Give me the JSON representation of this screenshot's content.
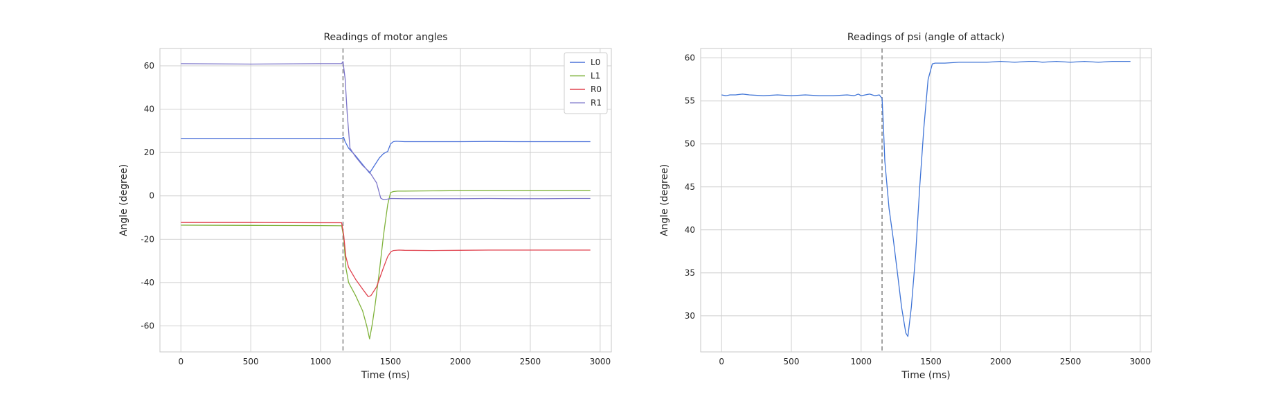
{
  "chart_data": [
    {
      "type": "line",
      "title": "Readings of motor angles",
      "xlabel": "Time (ms)",
      "ylabel": "Angle (degree)",
      "xlim": [
        -150,
        3080
      ],
      "ylim": [
        -72,
        68
      ],
      "xticks": [
        0,
        500,
        1000,
        1500,
        2000,
        2500,
        3000
      ],
      "yticks": [
        -60,
        -40,
        -20,
        0,
        20,
        40,
        60
      ],
      "grid": true,
      "legend": "top-right",
      "vline_x": 1160,
      "series": [
        {
          "name": "L0",
          "color": "#4c72d9",
          "x": [
            0,
            500,
            1000,
            1150,
            1165,
            1175,
            1200,
            1250,
            1300,
            1350,
            1380,
            1420,
            1450,
            1480,
            1500,
            1520,
            1540,
            1600,
            1800,
            2000,
            2200,
            2400,
            2600,
            2800,
            2930
          ],
          "y": [
            26.5,
            26.5,
            26.5,
            26.5,
            27,
            25,
            22,
            18.5,
            14.5,
            10.5,
            13.5,
            17.5,
            19.5,
            20.5,
            24,
            25,
            25.2,
            25,
            25,
            25,
            25.1,
            25,
            25,
            25,
            25
          ]
        },
        {
          "name": "L1",
          "color": "#7fb23a",
          "x": [
            0,
            500,
            1000,
            1150,
            1165,
            1180,
            1200,
            1250,
            1300,
            1330,
            1350,
            1370,
            1390,
            1420,
            1450,
            1480,
            1500,
            1520,
            1550,
            1600,
            1800,
            2000,
            2200,
            2400,
            2600,
            2800,
            2930
          ],
          "y": [
            -13.5,
            -13.6,
            -13.7,
            -13.8,
            -19,
            -33,
            -40,
            -46,
            -53,
            -60,
            -66,
            -59,
            -50,
            -35,
            -18,
            -4,
            1.5,
            2,
            2.2,
            2.2,
            2.3,
            2.4,
            2.4,
            2.4,
            2.4,
            2.4,
            2.4
          ],
          "hide_in_legend_order": false
        },
        {
          "name": "R0",
          "color": "#e0424e",
          "x": [
            0,
            500,
            1000,
            1150,
            1165,
            1180,
            1200,
            1250,
            1300,
            1340,
            1360,
            1400,
            1450,
            1480,
            1500,
            1520,
            1560,
            1600,
            1800,
            2000,
            2200,
            2400,
            2600,
            2800,
            2930
          ],
          "y": [
            -12.3,
            -12.3,
            -12.4,
            -12.4,
            -18,
            -28,
            -33,
            -38.5,
            -43,
            -46.5,
            -46,
            -42,
            -33,
            -28,
            -26,
            -25.2,
            -25,
            -25.1,
            -25.2,
            -25.1,
            -25,
            -25,
            -25,
            -25,
            -25
          ]
        },
        {
          "name": "R1",
          "color": "#7b74c9",
          "x": [
            0,
            500,
            1000,
            1150,
            1160,
            1175,
            1190,
            1210,
            1250,
            1300,
            1350,
            1380,
            1400,
            1430,
            1450,
            1480,
            1500,
            1600,
            1800,
            2000,
            2200,
            2400,
            2600,
            2800,
            2930
          ],
          "y": [
            61,
            60.8,
            61,
            61,
            62,
            54,
            38,
            22,
            18,
            14,
            11,
            8,
            6,
            -1,
            -1.8,
            -1.5,
            -1.2,
            -1.3,
            -1.3,
            -1.3,
            -1.2,
            -1.3,
            -1.3,
            -1.2,
            -1.2
          ]
        }
      ]
    },
    {
      "type": "line",
      "title": "Readings of psi (angle of attack)",
      "xlabel": "Time (ms)",
      "ylabel": "Angle (degree)",
      "xlim": [
        -150,
        3080
      ],
      "ylim": [
        25.8,
        61.1
      ],
      "xticks": [
        0,
        500,
        1000,
        1500,
        2000,
        2500,
        3000
      ],
      "yticks": [
        30,
        35,
        40,
        45,
        50,
        55,
        60
      ],
      "grid": true,
      "vline_x": 1150,
      "series": [
        {
          "name": "",
          "color": "#3f74d6",
          "x": [
            0,
            30,
            60,
            100,
            150,
            200,
            300,
            400,
            500,
            600,
            700,
            800,
            900,
            950,
            980,
            1000,
            1030,
            1060,
            1100,
            1130,
            1150,
            1160,
            1170,
            1200,
            1230,
            1260,
            1290,
            1320,
            1335,
            1360,
            1390,
            1420,
            1450,
            1480,
            1510,
            1530,
            1560,
            1600,
            1700,
            1800,
            1900,
            2000,
            2100,
            2200,
            2250,
            2300,
            2400,
            2500,
            2600,
            2700,
            2800,
            2930
          ],
          "y": [
            55.7,
            55.6,
            55.7,
            55.7,
            55.8,
            55.7,
            55.6,
            55.7,
            55.6,
            55.7,
            55.6,
            55.6,
            55.7,
            55.6,
            55.8,
            55.6,
            55.7,
            55.8,
            55.6,
            55.7,
            55.3,
            52,
            48,
            42.5,
            39,
            35,
            31,
            28,
            27.6,
            31,
            37,
            45,
            52,
            57.5,
            59.3,
            59.4,
            59.4,
            59.4,
            59.5,
            59.5,
            59.5,
            59.6,
            59.5,
            59.6,
            59.6,
            59.5,
            59.6,
            59.5,
            59.6,
            59.5,
            59.6,
            59.6
          ]
        }
      ]
    }
  ]
}
